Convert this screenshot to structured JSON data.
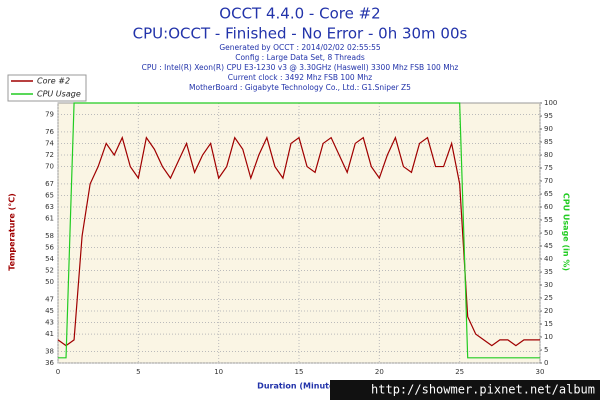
{
  "chart_data": {
    "type": "line",
    "title": "OCCT 4.4.0 - Core #2",
    "subtitle": "CPU:OCCT - Finished - No Error - 0h 30m 00s",
    "info_lines": [
      "Generated by OCCT : 2014/02/02 02:55:55",
      "Config : Large Data Set, 8 Threads",
      "CPU : Intel(R) Xeon(R) CPU E3-1230 v3 @ 3.30GHz (Haswell) 3300 Mhz FSB 100 Mhz",
      "Current clock : 3492 Mhz FSB 100 Mhz",
      "MotherBoard : Gigabyte Technology Co., Ltd.: G1.Sniper Z5"
    ],
    "x_label": "Duration (Minutes)",
    "y_label": "Temperature (°C)",
    "y2_label": "CPU Usage (in %)",
    "watermark": "http://showmer.pixnet.net/album",
    "x": [
      0,
      0.5,
      1,
      1.5,
      2,
      2.5,
      3,
      3.5,
      4,
      4.5,
      5,
      5.5,
      6,
      6.5,
      7,
      7.5,
      8,
      8.5,
      9,
      9.5,
      10,
      10.5,
      11,
      11.5,
      12,
      12.5,
      13,
      13.5,
      14,
      14.5,
      15,
      15.5,
      16,
      16.5,
      17,
      17.5,
      18,
      18.5,
      19,
      19.5,
      20,
      20.5,
      21,
      21.5,
      22,
      22.5,
      23,
      23.5,
      24,
      24.5,
      25,
      25.5,
      26,
      26.5,
      27,
      27.5,
      28,
      28.5,
      29,
      29.5,
      30
    ],
    "series": [
      {
        "name": "Core #2",
        "color": "#a00000",
        "axis": "y",
        "values": [
          40,
          39,
          40,
          58,
          67,
          70,
          74,
          72,
          75,
          70,
          68,
          75,
          73,
          70,
          68,
          71,
          74,
          69,
          72,
          74,
          68,
          70,
          75,
          73,
          68,
          72,
          75,
          70,
          68,
          74,
          75,
          70,
          69,
          74,
          75,
          72,
          69,
          74,
          75,
          70,
          68,
          72,
          75,
          70,
          69,
          74,
          75,
          70,
          70,
          74,
          67,
          44,
          41,
          40,
          39,
          40,
          40,
          39,
          40,
          40,
          40
        ]
      },
      {
        "name": "CPU Usage",
        "color": "#22cc22",
        "axis": "y2",
        "values": [
          2,
          2,
          100,
          100,
          100,
          100,
          100,
          100,
          100,
          100,
          100,
          100,
          100,
          100,
          100,
          100,
          100,
          100,
          100,
          100,
          100,
          100,
          100,
          100,
          100,
          100,
          100,
          100,
          100,
          100,
          100,
          100,
          100,
          100,
          100,
          100,
          100,
          100,
          100,
          100,
          100,
          100,
          100,
          100,
          100,
          100,
          100,
          100,
          100,
          100,
          100,
          2,
          2,
          2,
          2,
          2,
          2,
          2,
          2,
          2,
          2
        ]
      }
    ],
    "xlim": [
      0,
      30
    ],
    "xticks": [
      0,
      5,
      10,
      15,
      20,
      25,
      30
    ],
    "ylim": [
      36,
      81
    ],
    "yticks": [
      36,
      38,
      41,
      43,
      45,
      47,
      50,
      52,
      54,
      56,
      58,
      61,
      63,
      65,
      67,
      70,
      72,
      74,
      76,
      79
    ],
    "y2lim": [
      0,
      100
    ],
    "y2ticks": [
      0,
      5,
      10,
      15,
      20,
      25,
      30,
      35,
      40,
      45,
      50,
      55,
      60,
      65,
      70,
      75,
      80,
      85,
      90,
      95,
      100
    ],
    "grid": true,
    "legend": "top-left"
  }
}
